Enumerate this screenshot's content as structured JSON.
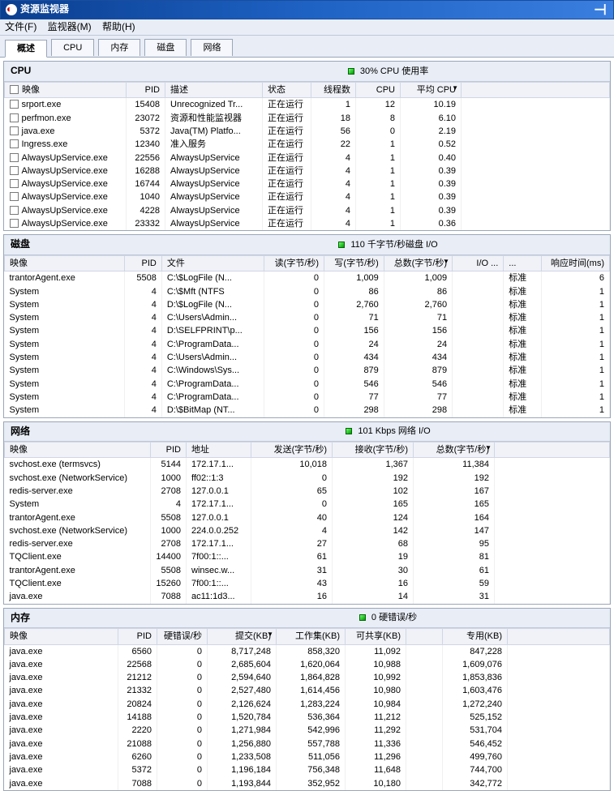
{
  "window": {
    "title": "资源监视器"
  },
  "menubar": {
    "file": "文件(F)",
    "monitor": "监视器(M)",
    "help": "帮助(H)"
  },
  "tabs": {
    "overview": "概述",
    "cpu": "CPU",
    "memory": "内存",
    "disk": "磁盘",
    "network": "网络"
  },
  "cpu": {
    "title": "CPU",
    "stat": "30% CPU 使用率",
    "headers": {
      "image": "映像",
      "pid": "PID",
      "desc": "描述",
      "status": "状态",
      "threads": "线程数",
      "cpu": "CPU",
      "avg": "平均 CPU"
    },
    "status_running": "正在运行",
    "rows": [
      {
        "image": "srport.exe",
        "pid": "15408",
        "desc": "Unrecognized Tr...",
        "threads": "1",
        "cpu": "12",
        "avg": "10.19"
      },
      {
        "image": "perfmon.exe",
        "pid": "23072",
        "desc": "资源和性能监视器",
        "threads": "18",
        "cpu": "8",
        "avg": "6.10"
      },
      {
        "image": "java.exe",
        "pid": "5372",
        "desc": "Java(TM) Platfo...",
        "threads": "56",
        "cpu": "0",
        "avg": "2.19"
      },
      {
        "image": "Ingress.exe",
        "pid": "12340",
        "desc": "准入服务",
        "threads": "22",
        "cpu": "1",
        "avg": "0.52"
      },
      {
        "image": "AlwaysUpService.exe",
        "pid": "22556",
        "desc": "AlwaysUpService",
        "threads": "4",
        "cpu": "1",
        "avg": "0.40"
      },
      {
        "image": "AlwaysUpService.exe",
        "pid": "16288",
        "desc": "AlwaysUpService",
        "threads": "4",
        "cpu": "1",
        "avg": "0.39"
      },
      {
        "image": "AlwaysUpService.exe",
        "pid": "16744",
        "desc": "AlwaysUpService",
        "threads": "4",
        "cpu": "1",
        "avg": "0.39"
      },
      {
        "image": "AlwaysUpService.exe",
        "pid": "1040",
        "desc": "AlwaysUpService",
        "threads": "4",
        "cpu": "1",
        "avg": "0.39"
      },
      {
        "image": "AlwaysUpService.exe",
        "pid": "4228",
        "desc": "AlwaysUpService",
        "threads": "4",
        "cpu": "1",
        "avg": "0.39"
      },
      {
        "image": "AlwaysUpService.exe",
        "pid": "23332",
        "desc": "AlwaysUpService",
        "threads": "4",
        "cpu": "1",
        "avg": "0.36"
      }
    ]
  },
  "disk": {
    "title": "磁盘",
    "stat": "110 千字节/秒磁盘 I/O",
    "headers": {
      "image": "映像",
      "pid": "PID",
      "file": "文件",
      "read": "读(字节/秒)",
      "write": "写(字节/秒)",
      "total": "总数(字节/秒)",
      "io": "I/O ...",
      "pri": "...",
      "resp": "响应时间(ms)"
    },
    "pri_normal": "标准",
    "rows": [
      {
        "image": "trantorAgent.exe",
        "pid": "5508",
        "file": "C:\\$LogFile (N...",
        "read": "0",
        "write": "1,009",
        "total": "1,009",
        "resp": "6"
      },
      {
        "image": "System",
        "pid": "4",
        "file": "C:\\$Mft (NTFS",
        "read": "0",
        "write": "86",
        "total": "86",
        "resp": "1"
      },
      {
        "image": "System",
        "pid": "4",
        "file": "D:\\$LogFile (N...",
        "read": "0",
        "write": "2,760",
        "total": "2,760",
        "resp": "1"
      },
      {
        "image": "System",
        "pid": "4",
        "file": "C:\\Users\\Admin...",
        "read": "0",
        "write": "71",
        "total": "71",
        "resp": "1"
      },
      {
        "image": "System",
        "pid": "4",
        "file": "D:\\SELFPRINT\\p...",
        "read": "0",
        "write": "156",
        "total": "156",
        "resp": "1"
      },
      {
        "image": "System",
        "pid": "4",
        "file": "C:\\ProgramData...",
        "read": "0",
        "write": "24",
        "total": "24",
        "resp": "1"
      },
      {
        "image": "System",
        "pid": "4",
        "file": "C:\\Users\\Admin...",
        "read": "0",
        "write": "434",
        "total": "434",
        "resp": "1"
      },
      {
        "image": "System",
        "pid": "4",
        "file": "C:\\Windows\\Sys...",
        "read": "0",
        "write": "879",
        "total": "879",
        "resp": "1"
      },
      {
        "image": "System",
        "pid": "4",
        "file": "C:\\ProgramData...",
        "read": "0",
        "write": "546",
        "total": "546",
        "resp": "1"
      },
      {
        "image": "System",
        "pid": "4",
        "file": "C:\\ProgramData...",
        "read": "0",
        "write": "77",
        "total": "77",
        "resp": "1"
      },
      {
        "image": "System",
        "pid": "4",
        "file": "D:\\$BitMap (NT...",
        "read": "0",
        "write": "298",
        "total": "298",
        "resp": "1"
      }
    ]
  },
  "network": {
    "title": "网络",
    "stat": "101 Kbps 网络 I/O",
    "headers": {
      "image": "映像",
      "pid": "PID",
      "addr": "地址",
      "send": "发送(字节/秒)",
      "recv": "接收(字节/秒)",
      "total": "总数(字节/秒)"
    },
    "rows": [
      {
        "image": "svchost.exe (termsvcs)",
        "pid": "5144",
        "addr": "172.17.1...",
        "send": "10,018",
        "recv": "1,367",
        "total": "11,384"
      },
      {
        "image": "svchost.exe (NetworkService)",
        "pid": "1000",
        "addr": "ff02::1:3",
        "send": "0",
        "recv": "192",
        "total": "192"
      },
      {
        "image": "redis-server.exe",
        "pid": "2708",
        "addr": "127.0.0.1",
        "send": "65",
        "recv": "102",
        "total": "167"
      },
      {
        "image": "System",
        "pid": "4",
        "addr": "172.17.1...",
        "send": "0",
        "recv": "165",
        "total": "165"
      },
      {
        "image": "trantorAgent.exe",
        "pid": "5508",
        "addr": "127.0.0.1",
        "send": "40",
        "recv": "124",
        "total": "164"
      },
      {
        "image": "svchost.exe (NetworkService)",
        "pid": "1000",
        "addr": "224.0.0.252",
        "send": "4",
        "recv": "142",
        "total": "147"
      },
      {
        "image": "redis-server.exe",
        "pid": "2708",
        "addr": "172.17.1...",
        "send": "27",
        "recv": "68",
        "total": "95"
      },
      {
        "image": "TQClient.exe",
        "pid": "14400",
        "addr": "7f00:1::...",
        "send": "61",
        "recv": "19",
        "total": "81"
      },
      {
        "image": "trantorAgent.exe",
        "pid": "5508",
        "addr": "winsec.w...",
        "send": "31",
        "recv": "30",
        "total": "61"
      },
      {
        "image": "TQClient.exe",
        "pid": "15260",
        "addr": "7f00:1::...",
        "send": "43",
        "recv": "16",
        "total": "59"
      },
      {
        "image": "java.exe",
        "pid": "7088",
        "addr": "ac11:1d3...",
        "send": "16",
        "recv": "14",
        "total": "31"
      }
    ]
  },
  "memory": {
    "title": "内存",
    "stat": "0 硬错误/秒",
    "headers": {
      "image": "映像",
      "pid": "PID",
      "hf": "硬错误/秒",
      "commit": "提交(KB)",
      "wset": "工作集(KB)",
      "share": "可共享(KB)",
      "blank": "",
      "priv": "专用(KB)"
    },
    "rows": [
      {
        "image": "java.exe",
        "pid": "6560",
        "hf": "0",
        "commit": "8,717,248",
        "wset": "858,320",
        "share": "11,092",
        "priv": "847,228"
      },
      {
        "image": "java.exe",
        "pid": "22568",
        "hf": "0",
        "commit": "2,685,604",
        "wset": "1,620,064",
        "share": "10,988",
        "priv": "1,609,076"
      },
      {
        "image": "java.exe",
        "pid": "21212",
        "hf": "0",
        "commit": "2,594,640",
        "wset": "1,864,828",
        "share": "10,992",
        "priv": "1,853,836"
      },
      {
        "image": "java.exe",
        "pid": "21332",
        "hf": "0",
        "commit": "2,527,480",
        "wset": "1,614,456",
        "share": "10,980",
        "priv": "1,603,476"
      },
      {
        "image": "java.exe",
        "pid": "20824",
        "hf": "0",
        "commit": "2,126,624",
        "wset": "1,283,224",
        "share": "10,984",
        "priv": "1,272,240"
      },
      {
        "image": "java.exe",
        "pid": "14188",
        "hf": "0",
        "commit": "1,520,784",
        "wset": "536,364",
        "share": "11,212",
        "priv": "525,152"
      },
      {
        "image": "java.exe",
        "pid": "2220",
        "hf": "0",
        "commit": "1,271,984",
        "wset": "542,996",
        "share": "11,292",
        "priv": "531,704"
      },
      {
        "image": "java.exe",
        "pid": "21088",
        "hf": "0",
        "commit": "1,256,880",
        "wset": "557,788",
        "share": "11,336",
        "priv": "546,452"
      },
      {
        "image": "java.exe",
        "pid": "6260",
        "hf": "0",
        "commit": "1,233,508",
        "wset": "511,056",
        "share": "11,296",
        "priv": "499,760"
      },
      {
        "image": "java.exe",
        "pid": "5372",
        "hf": "0",
        "commit": "1,196,184",
        "wset": "756,348",
        "share": "11,648",
        "priv": "744,700"
      },
      {
        "image": "java.exe",
        "pid": "7088",
        "hf": "0",
        "commit": "1,193,844",
        "wset": "352,952",
        "share": "10,180",
        "priv": "342,772"
      }
    ]
  }
}
